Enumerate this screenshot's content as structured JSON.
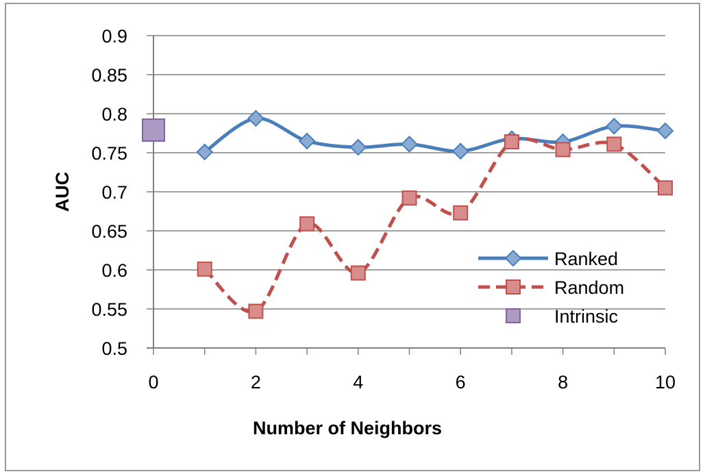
{
  "chart_data": {
    "type": "line",
    "title": "",
    "xlabel": "Number of Neighbors",
    "ylabel": "AUC",
    "xlim": [
      0,
      10
    ],
    "ylim": [
      0.5,
      0.9
    ],
    "x_ticks": [
      "0",
      "2",
      "4",
      "6",
      "8",
      "10"
    ],
    "y_ticks": [
      "0.5",
      "0.55",
      "0.6",
      "0.65",
      "0.7",
      "0.75",
      "0.8",
      "0.85",
      "0.9"
    ],
    "grid": "horizontal",
    "legend_position": "right",
    "series": [
      {
        "name": "Ranked",
        "color": "#4A7EBB",
        "marker": "diamond",
        "line": "solid-smooth",
        "x": [
          1,
          2,
          3,
          4,
          5,
          6,
          7,
          8,
          9,
          10
        ],
        "y": [
          0.751,
          0.794,
          0.765,
          0.757,
          0.761,
          0.752,
          0.768,
          0.764,
          0.784,
          0.778
        ]
      },
      {
        "name": "Random",
        "color": "#C0504D",
        "marker": "square",
        "line": "dashed-smooth",
        "x": [
          1,
          2,
          3,
          4,
          5,
          6,
          7,
          8,
          9,
          10
        ],
        "y": [
          0.601,
          0.547,
          0.659,
          0.596,
          0.692,
          0.673,
          0.764,
          0.754,
          0.761,
          0.705
        ]
      },
      {
        "name": "Intrinsic",
        "color": "#8064A2",
        "marker": "square",
        "line": "none",
        "x": [
          0
        ],
        "y": [
          0.779
        ]
      }
    ]
  }
}
